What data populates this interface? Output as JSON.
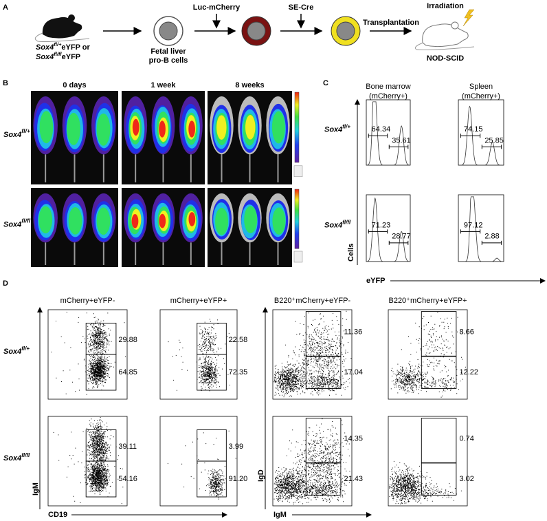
{
  "panel_a": {
    "label": "A",
    "mouse_label": [
      {
        "gene": "Sox4",
        "sup": "fl/+",
        "rest": "eYFP or"
      },
      {
        "gene": "Sox4",
        "sup": "fl/fl",
        "rest": "eYFP"
      }
    ],
    "cells": [
      "Fetal liver",
      "pro-B cells"
    ],
    "step1": "Luc-mCherry",
    "step2": "SE-Cre",
    "step3": "Transplantation",
    "irradiation": "Irradiation",
    "recipient": "NOD-SCID"
  },
  "panel_b": {
    "label": "B",
    "timepoints": [
      "0 days",
      "1 week",
      "8 weeks"
    ],
    "rows": [
      {
        "gene": "Sox4",
        "sup": "fl/+"
      },
      {
        "gene": "Sox4",
        "sup": "fl/fl"
      }
    ]
  },
  "panel_c": {
    "label": "C",
    "columns": [
      [
        "Bone marrow",
        "(mCherry+)"
      ],
      [
        "Spleen",
        "(mCherry+)"
      ]
    ],
    "rows": [
      {
        "gene": "Sox4",
        "sup": "fl/+"
      },
      {
        "gene": "Sox4",
        "sup": "fl/fl"
      }
    ],
    "y_axis": "Cells",
    "x_axis": "eYFP",
    "gates": [
      [
        [
          "64.34",
          "35.61"
        ],
        [
          "74.15",
          "25.85"
        ]
      ],
      [
        [
          "71.23",
          "28.77"
        ],
        [
          "97.12",
          "2.88"
        ]
      ]
    ]
  },
  "panel_d": {
    "label": "D",
    "columns": [
      "mCherry+eYFP-",
      "mCherry+eYFP+",
      "B220⁺mCherry+eYFP-",
      "B220⁺mCherry+eYFP+"
    ],
    "rows": [
      {
        "gene": "Sox4",
        "sup": "fl/+"
      },
      {
        "gene": "Sox4",
        "sup": "fl/fl"
      }
    ],
    "left_axes": {
      "y": "IgM",
      "x": "CD19"
    },
    "right_axes": {
      "y": "IgD",
      "x": "IgM"
    },
    "gates": [
      [
        [
          "29.88",
          "64.85"
        ],
        [
          "22.58",
          "72.35"
        ],
        [
          "11.36",
          "17.04"
        ],
        [
          "8.66",
          "12.22"
        ]
      ],
      [
        [
          "39.11",
          "54.16"
        ],
        [
          "3.99",
          "91.20"
        ],
        [
          "14.35",
          "21.43"
        ],
        [
          "0.74",
          "3.02"
        ]
      ]
    ]
  }
}
